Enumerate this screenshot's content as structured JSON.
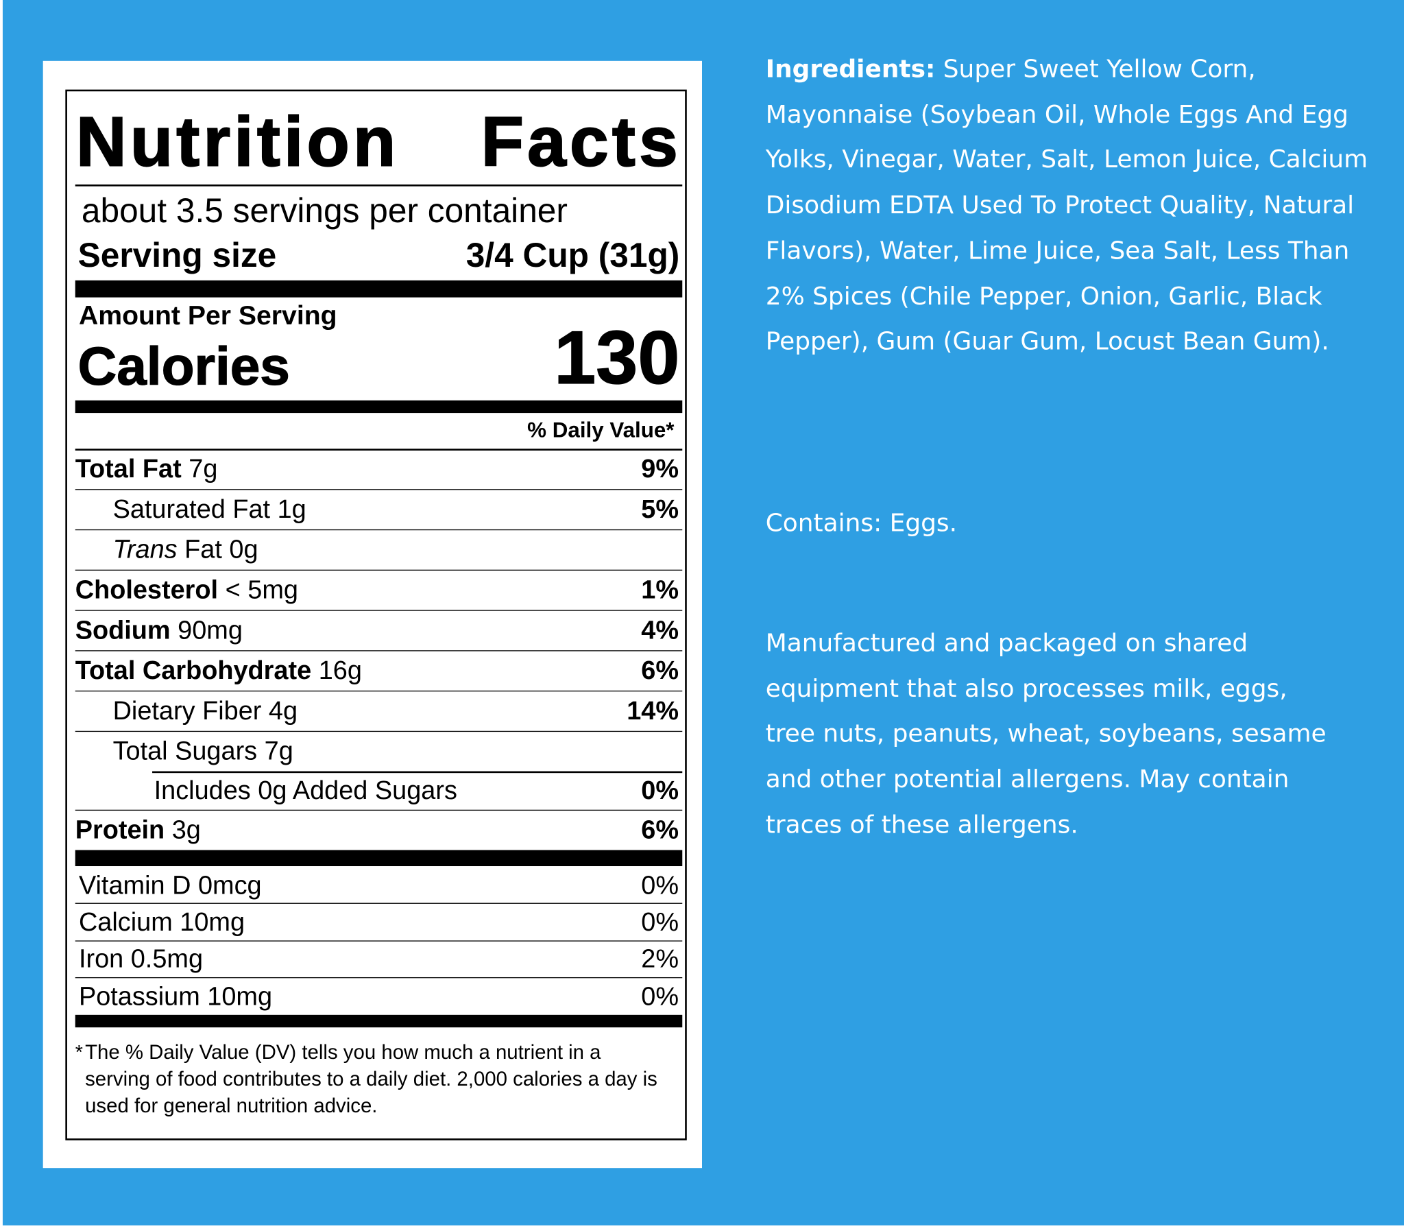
{
  "label": {
    "title": "Nutrition Facts",
    "servings": "about 3.5 servings per container",
    "serving_size_label": "Serving size",
    "serving_size": "3/4 Cup (31g)",
    "amount_per_serving": "Amount Per Serving",
    "calories_label": "Calories",
    "calories": 130,
    "dv_header": "% Daily Value*",
    "nutrients": [
      {
        "name": "Total Fat",
        "amount": "7g",
        "dv": "9%"
      },
      {
        "name": "Saturated Fat",
        "amount": "1g",
        "dv": "5%"
      },
      {
        "name": "Trans",
        "name_rest": "Fat",
        "amount": "0g"
      },
      {
        "name": "Cholesterol",
        "amount": "< 5mg",
        "dv": "1%"
      },
      {
        "name": "Sodium",
        "amount": "90mg",
        "dv": "4%"
      },
      {
        "name": "Total Carbohydrate",
        "amount": "16g",
        "dv": "6%"
      },
      {
        "name": "Dietary Fiber",
        "amount": "4g",
        "dv": "14%"
      },
      {
        "name": "Total Sugars",
        "amount": "7g"
      },
      {
        "name": "Includes 0g Added Sugars",
        "dv": "0%"
      },
      {
        "name": "Protein",
        "amount": "3g",
        "dv": "6%"
      }
    ],
    "vitamins": [
      {
        "name": "Vitamin D 0mcg",
        "dv": "0%"
      },
      {
        "name": "Calcium 10mg",
        "dv": "0%"
      },
      {
        "name": "Iron 0.5mg",
        "dv": "2%"
      },
      {
        "name": "Potassium 10mg",
        "dv": "0%"
      }
    ],
    "footnote_star": "*",
    "footnote": "The % Daily Value (DV) tells you how much a nutrient in a serving of food contributes to a daily diet. 2,000 calories a day is used for general nutrition advice."
  },
  "ingredients": {
    "heading": "Ingredients:",
    "text": "Super Sweet Yellow Corn, Mayonnaise (Soybean Oil, Whole Eggs And Egg Yolks, Vinegar, Water, Salt, Lemon Juice, Calcium Disodium EDTA Used To Protect Quality, Natural Flavors), Water, Lime Juice, Sea Salt, Less Than 2% Spices (Chile Pepper, Onion, Garlic, Black Pepper), Gum (Guar Gum, Locust Bean Gum)."
  },
  "contains": "Contains: Eggs.",
  "manufactured": "Manufactured and packaged on shared equipment that also processes milk, eggs, tree nuts, peanuts, wheat, soybeans, sesame and other potential allergens. May contain traces of these allergens."
}
